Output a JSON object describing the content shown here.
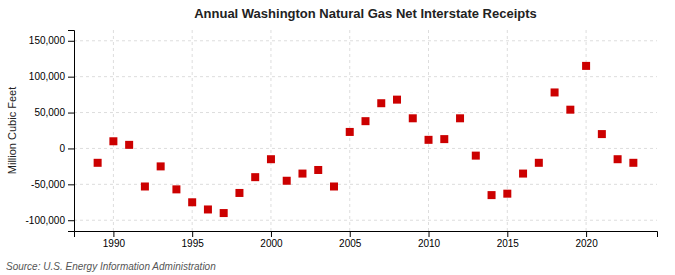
{
  "chart_data": {
    "type": "scatter",
    "title": "Annual Washington Natural Gas Net Interstate Receipts",
    "y_label": "Million Cubic Feet",
    "annotation": "Source: U.S. Energy Information Administration",
    "color": "#cc0000",
    "marker": "square",
    "grid": true,
    "xlim": [
      1987.5,
      2024.5
    ],
    "ylim": [
      -115000,
      165000
    ],
    "xticks": [
      1990,
      1995,
      2000,
      2005,
      2010,
      2015,
      2020
    ],
    "yticks": [
      {
        "value": -100000,
        "label": "-100,000"
      },
      {
        "value": -50000,
        "label": "-50,000"
      },
      0,
      {
        "value": 50000,
        "label": "50,000"
      },
      {
        "value": 100000,
        "label": "100,000"
      },
      {
        "value": 150000,
        "label": "150,000"
      }
    ],
    "x": [
      1989,
      1990,
      1991,
      1992,
      1993,
      1994,
      1995,
      1996,
      1997,
      1998,
      1999,
      2000,
      2001,
      2002,
      2003,
      2004,
      2005,
      2006,
      2007,
      2008,
      2009,
      2010,
      2011,
      2012,
      2013,
      2014,
      2015,
      2016,
      2017,
      2018,
      2019,
      2020,
      2021,
      2022,
      2023
    ],
    "values": [
      -20000,
      10000,
      5000,
      -53000,
      -25000,
      -57000,
      -75000,
      -85000,
      -90000,
      -62000,
      -40000,
      -15000,
      -45000,
      -35000,
      -30000,
      -53000,
      23000,
      38000,
      63000,
      68000,
      42000,
      12000,
      13000,
      42000,
      -10000,
      -65000,
      -63000,
      -35000,
      -20000,
      78000,
      54000,
      115000,
      20000,
      -15000,
      -20000
    ]
  }
}
